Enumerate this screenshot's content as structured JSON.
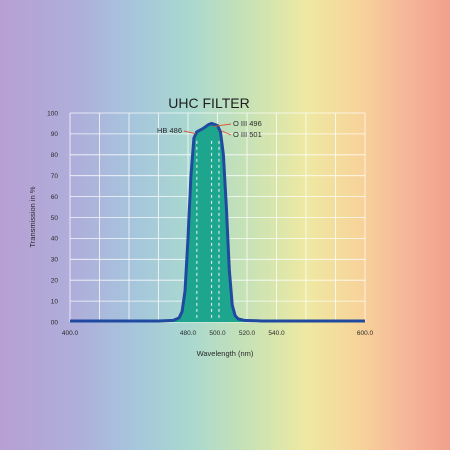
{
  "chart_data": {
    "type": "area",
    "title": "UHC FILTER",
    "xlabel": "Wavelength (nm)",
    "ylabel": "Transmission in %",
    "xlim": [
      400,
      600
    ],
    "ylim": [
      0,
      100
    ],
    "grid": true,
    "x_ticks": [
      {
        "value": 400,
        "label": "400.0"
      },
      {
        "value": 480,
        "label": "480.0"
      },
      {
        "value": 500,
        "label": "500.0"
      },
      {
        "value": 520,
        "label": "520.0"
      },
      {
        "value": 540,
        "label": "540.0"
      },
      {
        "value": 600,
        "label": "600.0"
      }
    ],
    "y_ticks": [
      {
        "value": 0,
        "label": "00"
      },
      {
        "value": 10,
        "label": "10"
      },
      {
        "value": 20,
        "label": "20"
      },
      {
        "value": 30,
        "label": "30"
      },
      {
        "value": 40,
        "label": "40"
      },
      {
        "value": 50,
        "label": "50"
      },
      {
        "value": 60,
        "label": "60"
      },
      {
        "value": 70,
        "label": "70"
      },
      {
        "value": 80,
        "label": "80"
      },
      {
        "value": 90,
        "label": "90"
      },
      {
        "value": 100,
        "label": "100"
      }
    ],
    "series": [
      {
        "x": [
          400,
          460,
          470,
          474,
          476,
          478,
          480,
          482,
          484,
          486,
          490,
          494,
          496,
          500,
          502,
          504,
          506,
          508,
          510,
          512,
          514,
          518,
          530,
          600
        ],
        "y": [
          0.5,
          0.5,
          0.8,
          2,
          5,
          15,
          40,
          70,
          88,
          91,
          92.5,
          94.5,
          95,
          94,
          91,
          80,
          55,
          25,
          8,
          3,
          1.5,
          0.8,
          0.5,
          0.5
        ]
      }
    ],
    "markers": [
      {
        "x": 486,
        "label": "HB 486"
      },
      {
        "x": 496,
        "label": "O III 496"
      },
      {
        "x": 501,
        "label": "O III 501"
      }
    ],
    "colors": {
      "line": "#1f4aa0",
      "fill": "#1ea58e",
      "grid": "#ffffff",
      "marker": "#eef2f7"
    }
  }
}
